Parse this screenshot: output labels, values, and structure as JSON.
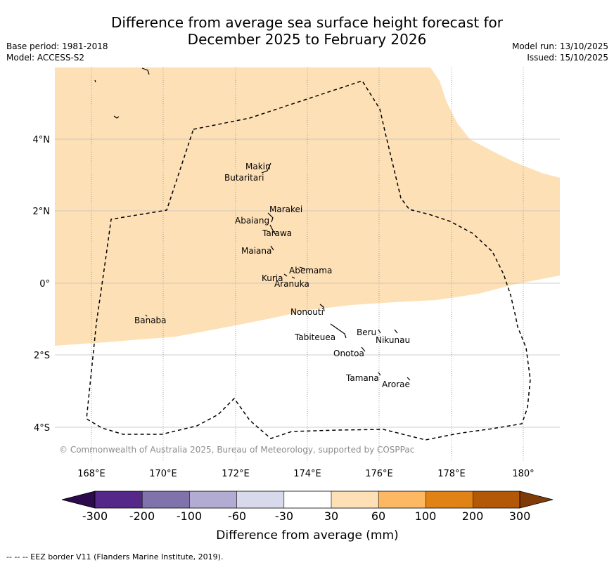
{
  "title": {
    "line1": "Difference from average sea surface height forecast for",
    "line2": "December 2025 to February 2026"
  },
  "meta": {
    "base_period": "Base period: 1981-2018",
    "model": "Model: ACCESS-S2",
    "model_run": "Model run: 13/10/2025",
    "issued": "Issued: 15/10/2025"
  },
  "map": {
    "lon_ticks": [
      "168°E",
      "170°E",
      "172°E",
      "174°E",
      "176°E",
      "178°E",
      "180°"
    ],
    "lat_ticks": [
      "4°N",
      "2°N",
      "0°",
      "2°S",
      "4°S"
    ],
    "copyright": "© Commonwealth of Australia 2025, Bureau of Meteorology, supported by COSPPac",
    "islands": [
      "Makin",
      "Butaritari",
      "Marakei",
      "Abaiang",
      "Tarawa",
      "Maiana",
      "Abemama",
      "Kuria",
      "Aranuka",
      "Nonouti",
      "Banaba",
      "Tabiteuea",
      "Beru",
      "Nikunau",
      "Onotoa",
      "Tamana",
      "Arorae"
    ]
  },
  "colorbar": {
    "ticks": [
      "-300",
      "-200",
      "-100",
      "-60",
      "-30",
      "30",
      "60",
      "100",
      "200",
      "300"
    ],
    "label": "Difference from average (mm)",
    "colors": {
      "extend_low": "#2d0a4e",
      "bins": [
        "#542788",
        "#8073ac",
        "#b2abd2",
        "#d8daeb",
        "#ffffff",
        "#fee0b6",
        "#fdb863",
        "#e08214",
        "#b35806"
      ],
      "extend_high": "#7f3b08"
    }
  },
  "footnote": "--  --  -- EEZ border V11 (Flanders Marine Institute, 2019)."
}
